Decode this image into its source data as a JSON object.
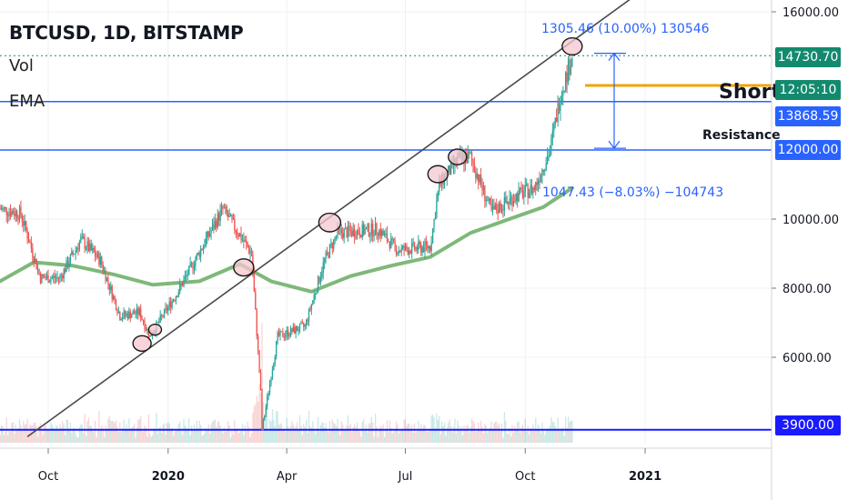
{
  "legend": {
    "title": "BTCUSD, 1D, BITSTAMP",
    "indicator1": "Vol",
    "indicator2": "EMA"
  },
  "price_tags": {
    "last": "14730.70",
    "countdown": "12:05:10",
    "resistance": "13868.59",
    "level_12000": "12000.00",
    "level_3900": "3900.00"
  },
  "annotations": {
    "upper_measure": "1305.46 (10.00%) 130546",
    "lower_measure": "1047.43 (−8.03%) −104743",
    "short_label": "Short",
    "resistance_label": "Resistance"
  },
  "colors": {
    "candle_up": "#26a69a",
    "candle_down": "#ef5350",
    "ema": "#7fb87a",
    "hline": "#2962ff",
    "support": "#1a1aff",
    "resistance": "#f0a30a",
    "last_price": "#138a6e",
    "trendline": "#4a4a4a",
    "circle_fill": "#f6c6cf"
  },
  "chart_data": {
    "type": "candlestick",
    "title": "BTCUSD, 1D, BITSTAMP",
    "ylim": [
      3000,
      16500
    ],
    "y_ticks": [
      "16000.00",
      "10000.00",
      "8000.00",
      "6000.00"
    ],
    "x_ticks": [
      "Oct",
      "2020",
      "Apr",
      "Jul",
      "Oct",
      "2021"
    ],
    "x_range": [
      "2019-08-25",
      "2021-04-08"
    ],
    "ema_series": [
      [
        "2019-08-25",
        8200
      ],
      [
        "2019-09-20",
        8750
      ],
      [
        "2019-10-20",
        8650
      ],
      [
        "2019-11-20",
        8400
      ],
      [
        "2019-12-20",
        8100
      ],
      [
        "2020-01-25",
        8200
      ],
      [
        "2020-02-25",
        8700
      ],
      [
        "2020-03-20",
        8200
      ],
      [
        "2020-04-20",
        7900
      ],
      [
        "2020-05-20",
        8350
      ],
      [
        "2020-06-20",
        8650
      ],
      [
        "2020-07-20",
        8900
      ],
      [
        "2020-08-20",
        9600
      ],
      [
        "2020-09-15",
        9950
      ],
      [
        "2020-10-15",
        10350
      ],
      [
        "2020-11-06",
        10900
      ]
    ],
    "price_path": [
      [
        "2019-08-25",
        10300
      ],
      [
        "2019-09-10",
        10150
      ],
      [
        "2019-09-25",
        8300
      ],
      [
        "2019-10-10",
        8300
      ],
      [
        "2019-10-26",
        9400
      ],
      [
        "2019-11-10",
        8800
      ],
      [
        "2019-11-25",
        7200
      ],
      [
        "2019-12-10",
        7300
      ],
      [
        "2019-12-18",
        6600
      ],
      [
        "2020-01-10",
        8000
      ],
      [
        "2020-02-12",
        10300
      ],
      [
        "2020-03-05",
        9000
      ],
      [
        "2020-03-12",
        5000
      ],
      [
        "2020-03-13",
        3900
      ],
      [
        "2020-03-25",
        6600
      ],
      [
        "2020-04-15",
        6900
      ],
      [
        "2020-04-30",
        8800
      ],
      [
        "2020-05-10",
        9600
      ],
      [
        "2020-06-10",
        9700
      ],
      [
        "2020-06-25",
        9100
      ],
      [
        "2020-07-20",
        9200
      ],
      [
        "2020-07-27",
        11000
      ],
      [
        "2020-08-10",
        11700
      ],
      [
        "2020-08-20",
        11800
      ],
      [
        "2020-09-05",
        10200
      ],
      [
        "2020-09-25",
        10700
      ],
      [
        "2020-10-08",
        10900
      ],
      [
        "2020-10-20",
        12000
      ],
      [
        "2020-10-28",
        13600
      ],
      [
        "2020-11-06",
        14730
      ]
    ],
    "horizontal_levels": [
      16000,
      12000,
      13868.59,
      14730.7,
      3900
    ],
    "trendline": [
      [
        "2019-09-15",
        3700
      ],
      [
        "2021-01-20",
        17200
      ]
    ],
    "circled_points": [
      [
        "2019-12-12",
        6400
      ],
      [
        "2019-12-22",
        6800
      ],
      [
        "2020-02-28",
        8600
      ],
      [
        "2020-05-04",
        9900
      ],
      [
        "2020-07-26",
        11300
      ],
      [
        "2020-08-10",
        11800
      ],
      [
        "2020-11-06",
        15000
      ]
    ]
  }
}
